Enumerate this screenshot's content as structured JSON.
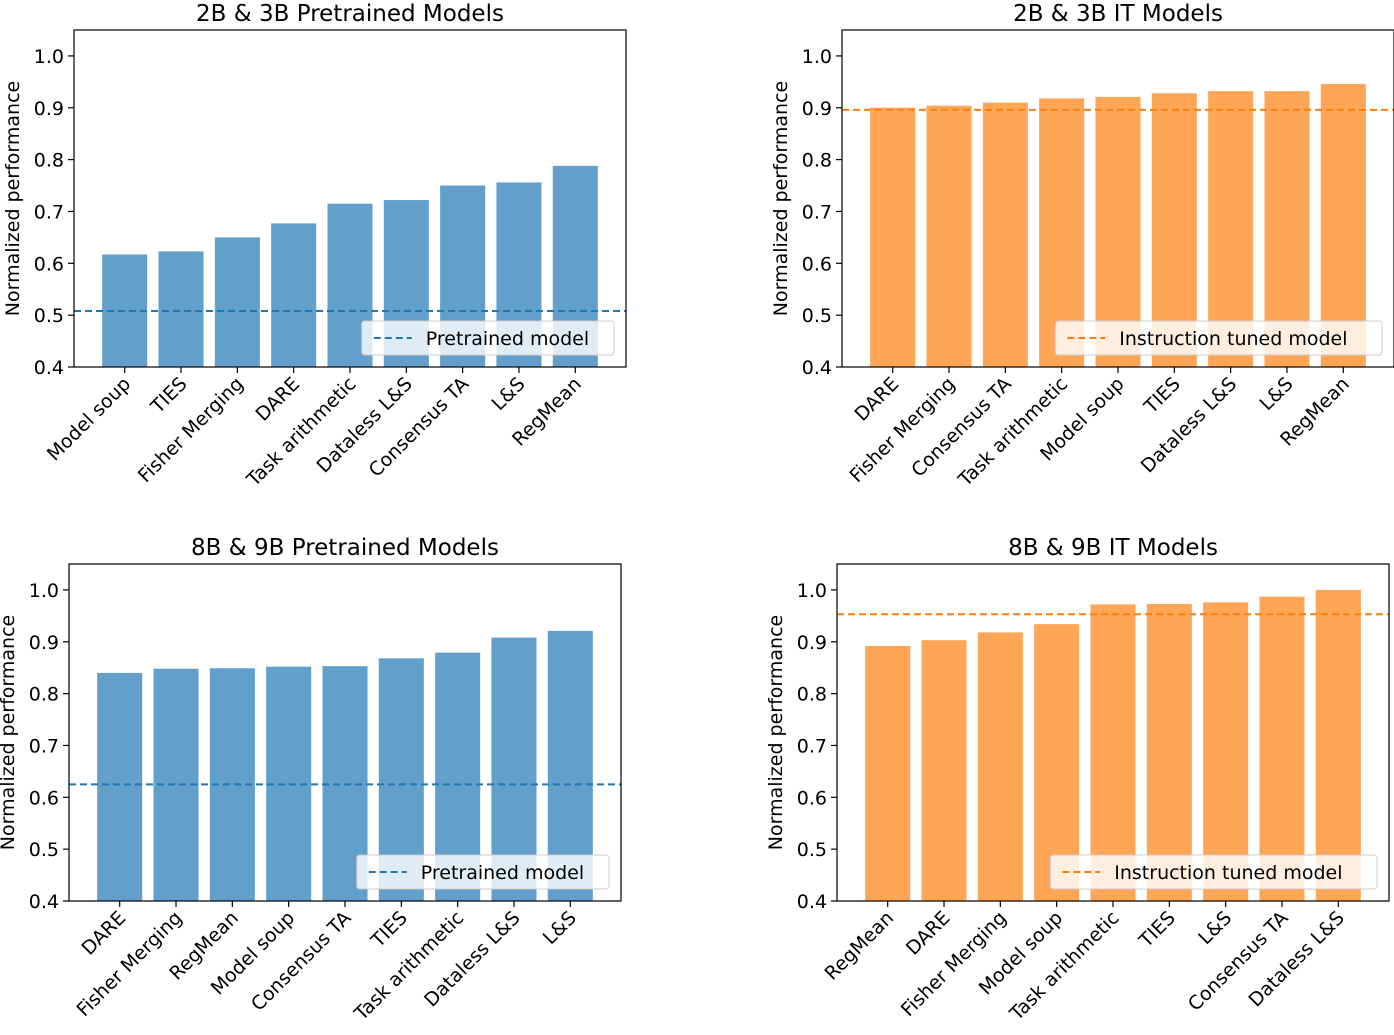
{
  "colors": {
    "pretrained": "#1f77b4",
    "it": "#ff7f0e"
  },
  "chart_data": [
    {
      "type": "bar",
      "title": "2B & 3B Pretrained Models",
      "ylabel": "Normalized performance",
      "xlabel": "",
      "ylim": [
        0.4,
        1.05
      ],
      "yticks": [
        "0.4",
        "0.5",
        "0.6",
        "0.7",
        "0.8",
        "0.9",
        "1.0"
      ],
      "categories": [
        "Model soup",
        "TIES",
        "Fisher Merging",
        "DARE",
        "Task arithmetic",
        "Dataless L&S",
        "Consensus TA",
        "L&S",
        "RegMean"
      ],
      "values": [
        0.617,
        0.623,
        0.65,
        0.677,
        0.715,
        0.722,
        0.75,
        0.756,
        0.788
      ],
      "color": "pretrained",
      "reference": {
        "label": "Pretrained model",
        "value": 0.508
      },
      "legend_position": "lower-right",
      "grid": false
    },
    {
      "type": "bar",
      "title": "2B & 3B IT Models",
      "ylabel": "Normalized performance",
      "xlabel": "",
      "ylim": [
        0.4,
        1.05
      ],
      "yticks": [
        "0.4",
        "0.5",
        "0.6",
        "0.7",
        "0.8",
        "0.9",
        "1.0"
      ],
      "categories": [
        "DARE",
        "Fisher Merging",
        "Consensus TA",
        "Task arithmetic",
        "Model soup",
        "TIES",
        "Dataless L&S",
        "L&S",
        "RegMean"
      ],
      "values": [
        0.9,
        0.904,
        0.91,
        0.918,
        0.921,
        0.928,
        0.932,
        0.932,
        0.946
      ],
      "color": "it",
      "reference": {
        "label": "Instruction tuned model",
        "value": 0.896
      },
      "legend_position": "lower-right",
      "grid": false
    },
    {
      "type": "bar",
      "title": "8B & 9B Pretrained Models",
      "ylabel": "Normalized performance",
      "xlabel": "",
      "ylim": [
        0.4,
        1.05
      ],
      "yticks": [
        "0.4",
        "0.5",
        "0.6",
        "0.7",
        "0.8",
        "0.9",
        "1.0"
      ],
      "categories": [
        "DARE",
        "Fisher Merging",
        "RegMean",
        "Model soup",
        "Consensus TA",
        "TIES",
        "Task arithmetic",
        "Dataless L&S",
        "L&S"
      ],
      "values": [
        0.84,
        0.848,
        0.849,
        0.852,
        0.853,
        0.868,
        0.879,
        0.908,
        0.921
      ],
      "color": "pretrained",
      "reference": {
        "label": "Pretrained model",
        "value": 0.625
      },
      "legend_position": "lower-right",
      "grid": false
    },
    {
      "type": "bar",
      "title": "8B & 9B IT Models",
      "ylabel": "Normalized performance",
      "xlabel": "",
      "ylim": [
        0.4,
        1.05
      ],
      "yticks": [
        "0.4",
        "0.5",
        "0.6",
        "0.7",
        "0.8",
        "0.9",
        "1.0"
      ],
      "categories": [
        "RegMean",
        "DARE",
        "Fisher Merging",
        "Model soup",
        "Task arithmetic",
        "TIES",
        "L&S",
        "Consensus TA",
        "Dataless L&S"
      ],
      "values": [
        0.892,
        0.903,
        0.918,
        0.934,
        0.972,
        0.973,
        0.976,
        0.987,
        1.0
      ],
      "color": "it",
      "reference": {
        "label": "Instruction tuned model",
        "value": 0.953
      },
      "legend_position": "lower-right",
      "grid": false
    }
  ]
}
